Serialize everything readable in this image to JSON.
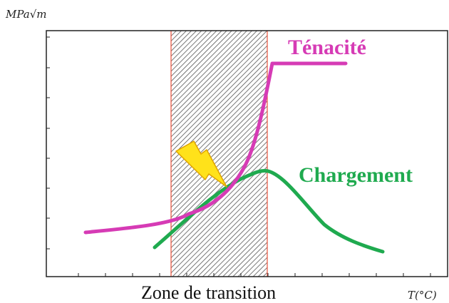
{
  "axes": {
    "y_unit": "MPa√m",
    "x_unit": "T(°C)"
  },
  "zone": {
    "label": "Zone de transition"
  },
  "curves": {
    "tenacite": {
      "label": "Ténacité",
      "color": "#d63bb5"
    },
    "chargement": {
      "label": "Chargement",
      "color": "#1faa4f"
    }
  },
  "colors": {
    "zone_border": "#e8503a",
    "hatch": "#555555",
    "axes": "#222222",
    "lightning_fill": "#ffe21a",
    "lightning_stroke": "#e0a400"
  },
  "icons": {
    "lightning": "lightning-bolt-icon"
  }
}
